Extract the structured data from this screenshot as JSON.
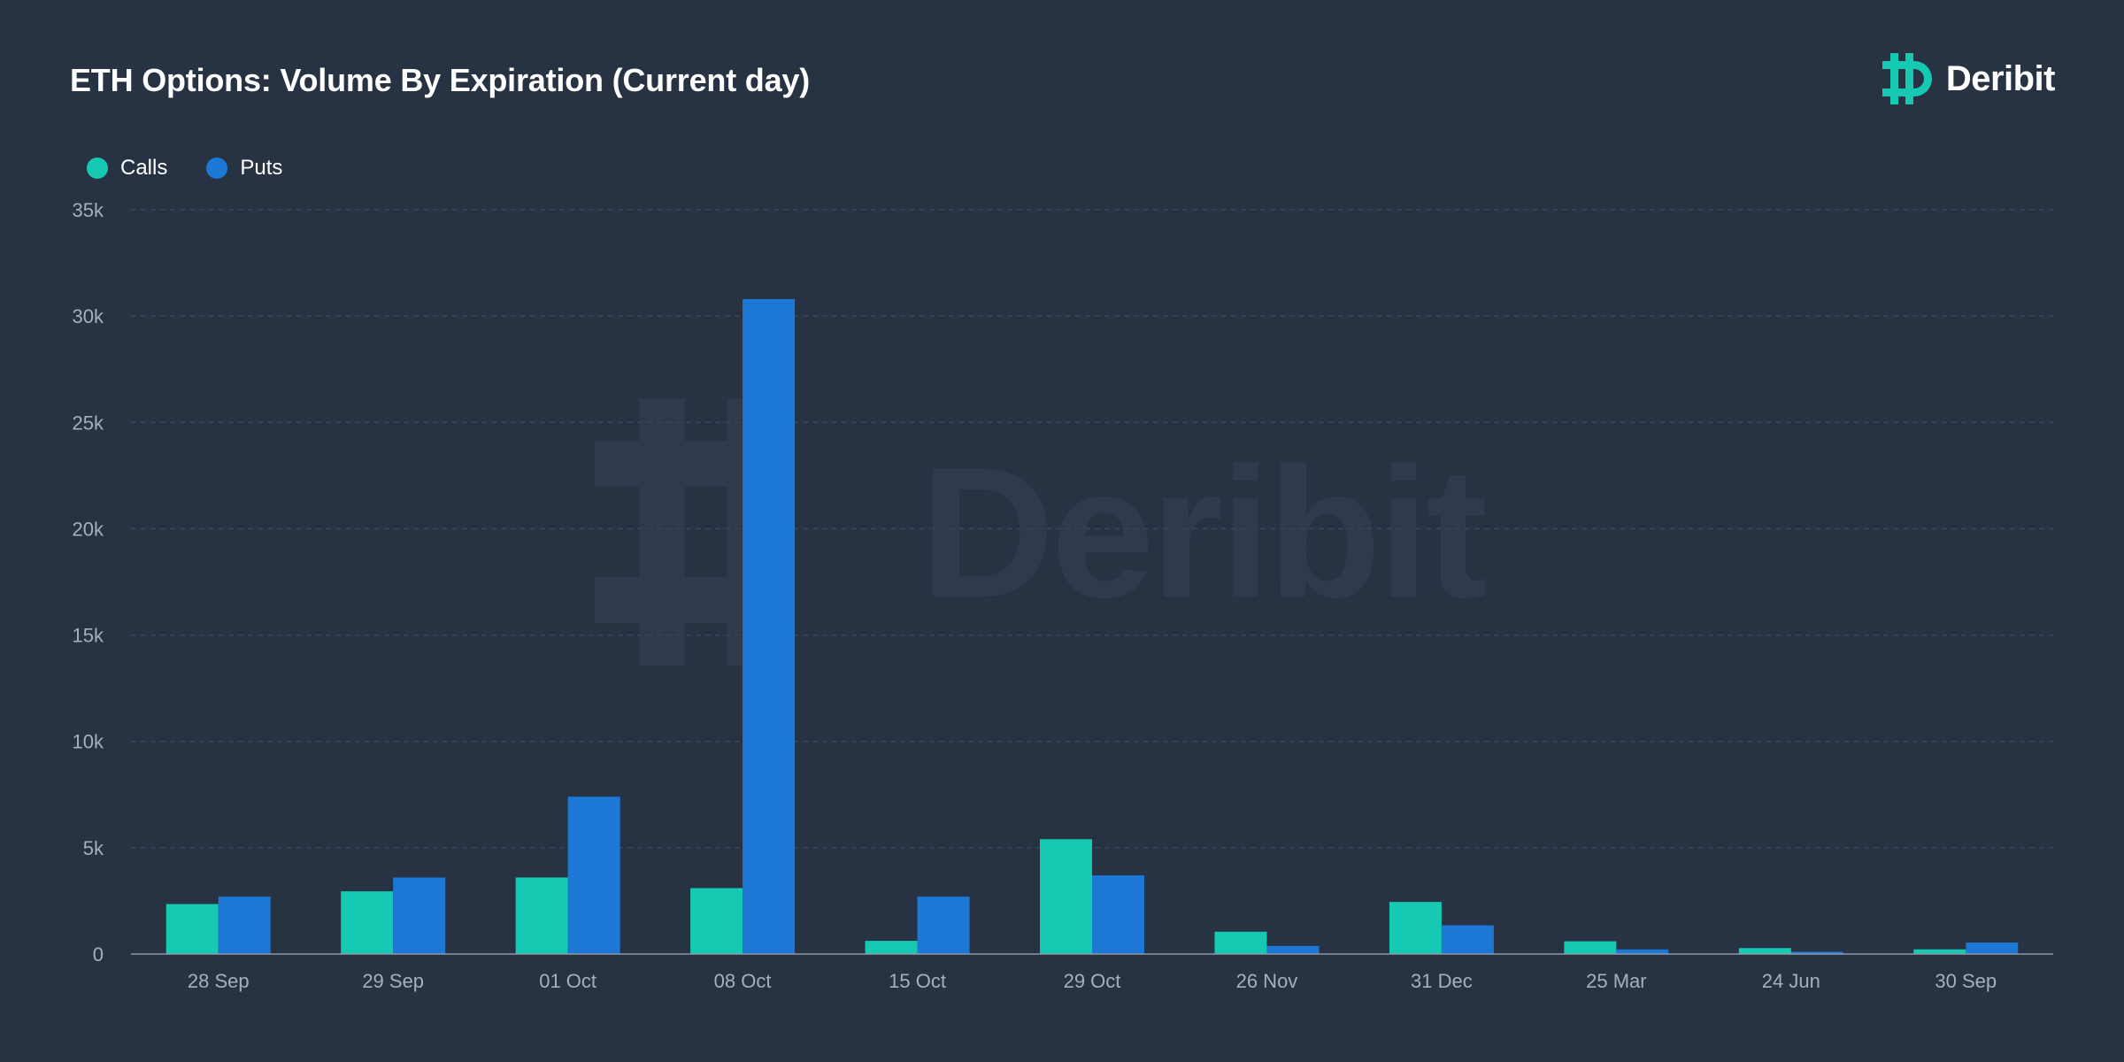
{
  "header": {
    "title": "ETH Options: Volume By Expiration (Current day)",
    "brand": "Deribit"
  },
  "watermark": {
    "text": "Deribit"
  },
  "colors": {
    "background": "#273243",
    "calls": "#16c9b2",
    "puts": "#1c78d4",
    "grid": "#384457",
    "axis_text": "#a6afbd",
    "watermark": "#2f3b4d"
  },
  "chart_data": {
    "type": "bar",
    "title": "ETH Options: Volume By Expiration (Current day)",
    "categories": [
      "28 Sep",
      "29 Sep",
      "01 Oct",
      "08 Oct",
      "15 Oct",
      "29 Oct",
      "26 Nov",
      "31 Dec",
      "25 Mar",
      "24 Jun",
      "30 Sep"
    ],
    "series": [
      {
        "name": "Calls",
        "color": "#16c9b2",
        "values": [
          2350,
          2950,
          3600,
          3100,
          620,
          5400,
          1050,
          2450,
          600,
          280,
          220
        ]
      },
      {
        "name": "Puts",
        "color": "#1c78d4",
        "values": [
          2700,
          3600,
          7400,
          30800,
          2700,
          3700,
          380,
          1350,
          220,
          110,
          540
        ]
      }
    ],
    "ylim": [
      0,
      35000
    ],
    "yticks": [
      0,
      5000,
      10000,
      15000,
      20000,
      25000,
      30000,
      35000
    ],
    "ytick_labels": [
      "0",
      "5k",
      "10k",
      "15k",
      "20k",
      "25k",
      "30k",
      "35k"
    ],
    "grid": true,
    "legend_position": "top-left"
  }
}
